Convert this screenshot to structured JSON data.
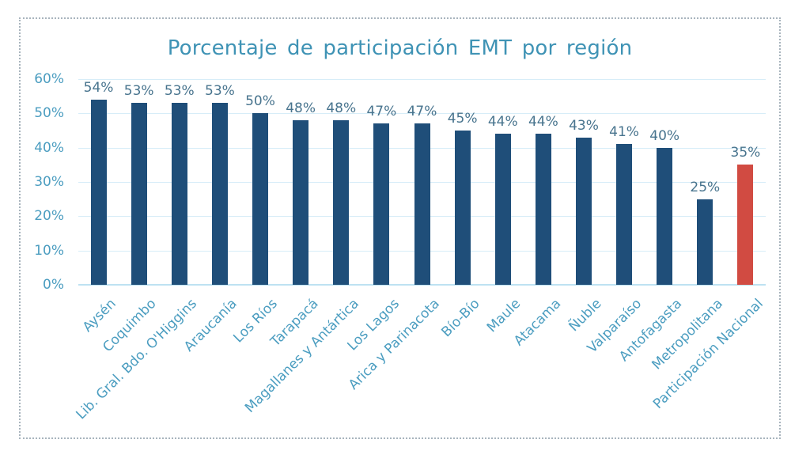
{
  "chart_data": {
    "type": "bar",
    "title": "Porcentaje de participación EMT por región",
    "categories": [
      "Aysén",
      "Coquimbo",
      "Lib. Gral. Bdo. O'Higgins",
      "Araucanía",
      "Los Ríos",
      "Tarapacá",
      "Magallanes y Antártica",
      "Los Lagos",
      "Arica y Parinacota",
      "Bío-Bío",
      "Maule",
      "Atacama",
      "Ñuble",
      "Valparaíso",
      "Antofagasta",
      "Metropolitana",
      "Participación Nacional"
    ],
    "values": [
      54,
      53,
      53,
      53,
      50,
      48,
      48,
      47,
      47,
      45,
      44,
      44,
      43,
      41,
      40,
      25,
      35
    ],
    "value_labels": [
      "54%",
      "53%",
      "53%",
      "53%",
      "50%",
      "48%",
      "48%",
      "47%",
      "47%",
      "45%",
      "44%",
      "44%",
      "43%",
      "41%",
      "40%",
      "25%",
      "35%"
    ],
    "yticks": [
      "0%",
      "10%",
      "20%",
      "30%",
      "40%",
      "50%",
      "60%"
    ],
    "ylim": [
      0,
      60
    ],
    "grid": true,
    "legend": "none",
    "highlight_index": 16,
    "colors": {
      "bar": "#1f4e79",
      "highlight_bar": "#d14b42",
      "title_text": "#3f93b5",
      "axis_text": "#4b9dc0",
      "value_label_text": "#48748e",
      "gridline": "#d7edf8",
      "axis_line": "#bee2f2",
      "border_dots": "#a8b4bd",
      "background": "#ffffff"
    }
  }
}
